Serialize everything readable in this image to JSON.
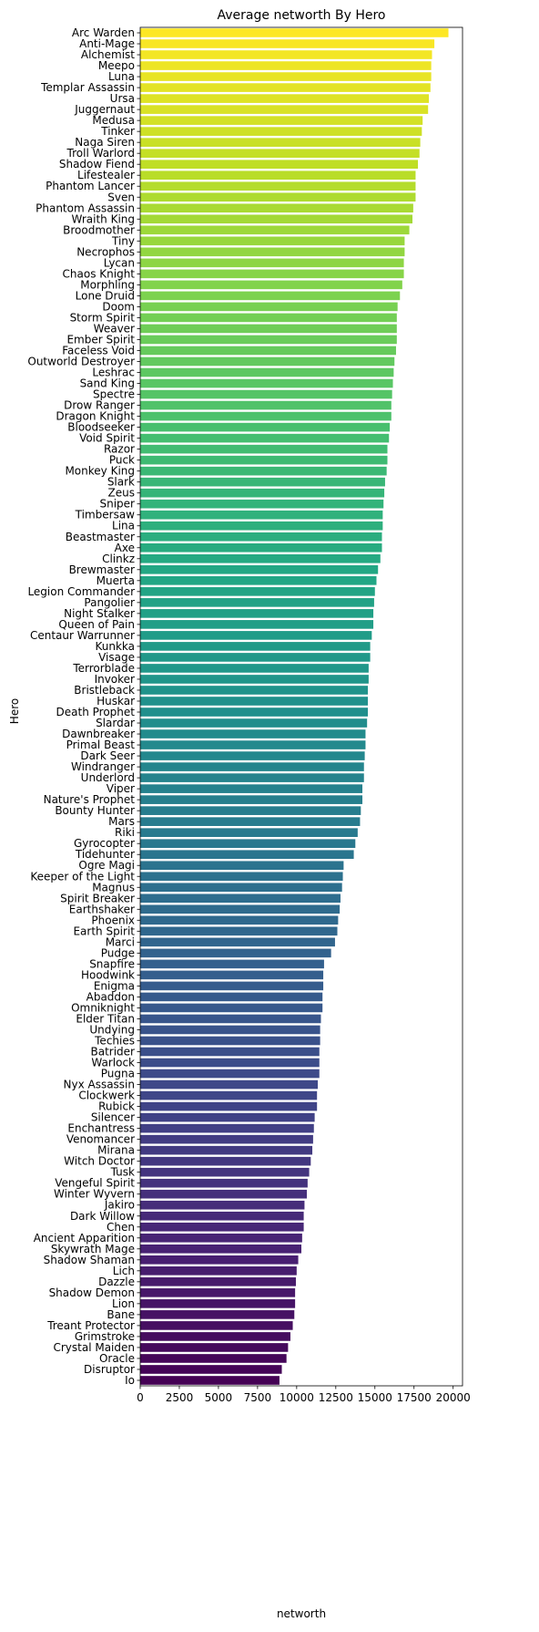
{
  "chart_data": {
    "type": "bar",
    "orientation": "horizontal",
    "title": "Average networth By Hero",
    "xlabel": "networth",
    "ylabel": "Hero",
    "xlim": [
      0,
      20600
    ],
    "xticks": [
      0,
      2500,
      5000,
      7500,
      10000,
      12500,
      15000,
      17500,
      20000
    ],
    "colormap": "viridis",
    "grid": false,
    "categories": [
      "Arc Warden",
      "Anti-Mage",
      "Alchemist",
      "Meepo",
      "Luna",
      "Templar Assassin",
      "Ursa",
      "Juggernaut",
      "Medusa",
      "Tinker",
      "Naga Siren",
      "Troll Warlord",
      "Shadow Fiend",
      "Lifestealer",
      "Phantom Lancer",
      "Sven",
      "Phantom Assassin",
      "Wraith King",
      "Broodmother",
      "Tiny",
      "Necrophos",
      "Lycan",
      "Chaos Knight",
      "Morphling",
      "Lone Druid",
      "Doom",
      "Storm Spirit",
      "Weaver",
      "Ember Spirit",
      "Faceless Void",
      "Outworld Destroyer",
      "Leshrac",
      "Sand King",
      "Spectre",
      "Drow Ranger",
      "Dragon Knight",
      "Bloodseeker",
      "Void Spirit",
      "Razor",
      "Puck",
      "Monkey King",
      "Slark",
      "Zeus",
      "Sniper",
      "Timbersaw",
      "Lina",
      "Beastmaster",
      "Axe",
      "Clinkz",
      "Brewmaster",
      "Muerta",
      "Legion Commander",
      "Pangolier",
      "Night Stalker",
      "Queen of Pain",
      "Centaur Warrunner",
      "Kunkka",
      "Visage",
      "Terrorblade",
      "Invoker",
      "Bristleback",
      "Huskar",
      "Death Prophet",
      "Slardar",
      "Dawnbreaker",
      "Primal Beast",
      "Dark Seer",
      "Windranger",
      "Underlord",
      "Viper",
      "Nature's Prophet",
      "Bounty Hunter",
      "Mars",
      "Riki",
      "Gyrocopter",
      "Tidehunter",
      "Ogre Magi",
      "Keeper of the Light",
      "Magnus",
      "Spirit Breaker",
      "Earthshaker",
      "Phoenix",
      "Earth Spirit",
      "Marci",
      "Pudge",
      "Snapfire",
      "Hoodwink",
      "Enigma",
      "Abaddon",
      "Omniknight",
      "Elder Titan",
      "Undying",
      "Techies",
      "Batrider",
      "Warlock",
      "Pugna",
      "Nyx Assassin",
      "Clockwerk",
      "Rubick",
      "Silencer",
      "Enchantress",
      "Venomancer",
      "Mirana",
      "Witch Doctor",
      "Tusk",
      "Vengeful Spirit",
      "Winter Wyvern",
      "Jakiro",
      "Dark Willow",
      "Chen",
      "Ancient Apparition",
      "Skywrath Mage",
      "Shadow Shaman",
      "Lich",
      "Dazzle",
      "Shadow Demon",
      "Lion",
      "Bane",
      "Treant Protector",
      "Grimstroke",
      "Crystal Maiden",
      "Oracle",
      "Disruptor",
      "Io"
    ],
    "values": [
      19700,
      18800,
      18650,
      18600,
      18600,
      18550,
      18450,
      18400,
      18050,
      18000,
      17900,
      17850,
      17750,
      17600,
      17600,
      17600,
      17450,
      17400,
      17200,
      16900,
      16900,
      16850,
      16850,
      16750,
      16600,
      16450,
      16400,
      16400,
      16400,
      16350,
      16250,
      16200,
      16150,
      16100,
      16050,
      16050,
      15950,
      15900,
      15800,
      15800,
      15750,
      15650,
      15600,
      15550,
      15500,
      15500,
      15450,
      15450,
      15350,
      15200,
      15100,
      15000,
      14950,
      14900,
      14900,
      14800,
      14700,
      14700,
      14600,
      14600,
      14550,
      14550,
      14550,
      14500,
      14400,
      14400,
      14350,
      14300,
      14300,
      14200,
      14200,
      14100,
      14050,
      13900,
      13750,
      13650,
      13000,
      12950,
      12900,
      12800,
      12750,
      12650,
      12600,
      12450,
      12200,
      11750,
      11700,
      11700,
      11650,
      11650,
      11550,
      11500,
      11500,
      11450,
      11450,
      11450,
      11350,
      11300,
      11300,
      11150,
      11100,
      11050,
      11000,
      10900,
      10800,
      10700,
      10650,
      10500,
      10450,
      10450,
      10350,
      10300,
      10100,
      10000,
      9950,
      9900,
      9900,
      9850,
      9750,
      9600,
      9450,
      9350,
      9050,
      8900
    ]
  }
}
